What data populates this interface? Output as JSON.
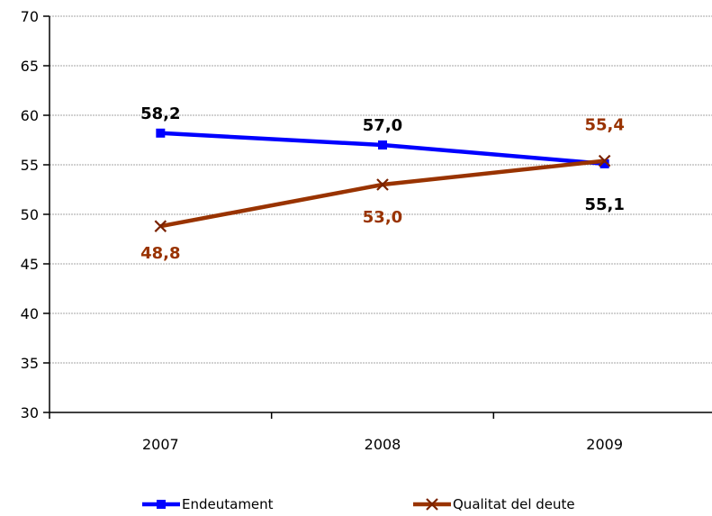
{
  "chart_data": {
    "type": "line",
    "categories": [
      "2007",
      "2008",
      "2009"
    ],
    "series": [
      {
        "name": "Endeutament",
        "values": [
          58.2,
          57.0,
          55.1
        ],
        "labels": [
          "58,2",
          "57,0",
          "55,1"
        ],
        "color": "#0000ff",
        "marker": "square"
      },
      {
        "name": "Qualitat del deute",
        "values": [
          48.8,
          53.0,
          55.4
        ],
        "labels": [
          "48,8",
          "53,0",
          "55,4"
        ],
        "color": "#993300",
        "marker": "x"
      }
    ],
    "y_ticks": [
      "30",
      "35",
      "40",
      "45",
      "50",
      "55",
      "60",
      "65",
      "70"
    ],
    "ylim": [
      30,
      70
    ],
    "grid": true,
    "legend_position": "bottom",
    "title": "",
    "xlabel": "",
    "ylabel": ""
  }
}
